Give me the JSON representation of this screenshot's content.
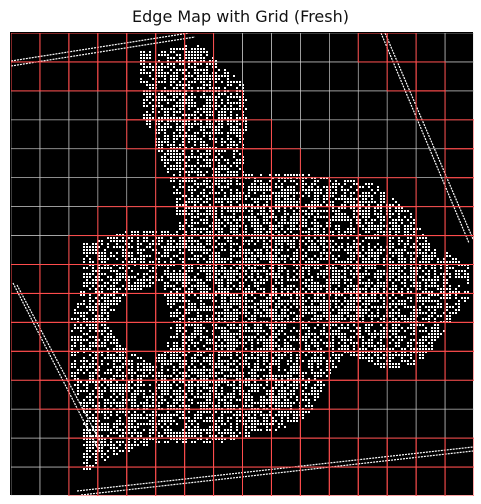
{
  "figure": {
    "title": "Edge Map with Grid (Fresh)"
  },
  "grid": {
    "cell_count": 16,
    "highlight_color": "#ff4d4d",
    "normal_color": "#c8c8c8",
    "highlighted_cells": [
      [
        0,
        0
      ],
      [
        0,
        1
      ],
      [
        0,
        2
      ],
      [
        0,
        3
      ],
      [
        0,
        4
      ],
      [
        0,
        5
      ],
      [
        0,
        6
      ],
      [
        0,
        12
      ],
      [
        0,
        13
      ],
      [
        1,
        0
      ],
      [
        1,
        1
      ],
      [
        1,
        2
      ],
      [
        1,
        3
      ],
      [
        1,
        4
      ],
      [
        1,
        5
      ],
      [
        1,
        6
      ],
      [
        1,
        13
      ],
      [
        1,
        14
      ],
      [
        2,
        4
      ],
      [
        2,
        5
      ],
      [
        2,
        6
      ],
      [
        2,
        7
      ],
      [
        2,
        14
      ],
      [
        3,
        4
      ],
      [
        3,
        5
      ],
      [
        3,
        6
      ],
      [
        3,
        7
      ],
      [
        3,
        8
      ],
      [
        3,
        15
      ],
      [
        4,
        5
      ],
      [
        4,
        6
      ],
      [
        4,
        7
      ],
      [
        4,
        8
      ],
      [
        4,
        9
      ],
      [
        4,
        15
      ],
      [
        5,
        5
      ],
      [
        5,
        6
      ],
      [
        5,
        7
      ],
      [
        5,
        8
      ],
      [
        5,
        9
      ],
      [
        5,
        10
      ],
      [
        5,
        11
      ],
      [
        5,
        12
      ],
      [
        5,
        13
      ],
      [
        5,
        15
      ],
      [
        6,
        3
      ],
      [
        6,
        4
      ],
      [
        6,
        5
      ],
      [
        6,
        6
      ],
      [
        6,
        7
      ],
      [
        6,
        8
      ],
      [
        6,
        9
      ],
      [
        6,
        10
      ],
      [
        6,
        11
      ],
      [
        6,
        12
      ],
      [
        6,
        13
      ],
      [
        6,
        14
      ],
      [
        6,
        15
      ],
      [
        7,
        2
      ],
      [
        7,
        3
      ],
      [
        7,
        4
      ],
      [
        7,
        5
      ],
      [
        7,
        6
      ],
      [
        7,
        7
      ],
      [
        7,
        8
      ],
      [
        7,
        9
      ],
      [
        7,
        10
      ],
      [
        7,
        11
      ],
      [
        7,
        12
      ],
      [
        7,
        13
      ],
      [
        7,
        14
      ],
      [
        7,
        15
      ],
      [
        8,
        0
      ],
      [
        8,
        1
      ],
      [
        8,
        2
      ],
      [
        8,
        3
      ],
      [
        8,
        4
      ],
      [
        8,
        5
      ],
      [
        8,
        6
      ],
      [
        8,
        7
      ],
      [
        8,
        8
      ],
      [
        8,
        9
      ],
      [
        8,
        10
      ],
      [
        8,
        11
      ],
      [
        8,
        12
      ],
      [
        8,
        13
      ],
      [
        8,
        14
      ],
      [
        8,
        15
      ],
      [
        9,
        0
      ],
      [
        9,
        1
      ],
      [
        9,
        2
      ],
      [
        9,
        3
      ],
      [
        9,
        4
      ],
      [
        9,
        5
      ],
      [
        9,
        6
      ],
      [
        9,
        7
      ],
      [
        9,
        8
      ],
      [
        9,
        9
      ],
      [
        9,
        10
      ],
      [
        9,
        11
      ],
      [
        9,
        12
      ],
      [
        9,
        13
      ],
      [
        9,
        14
      ],
      [
        9,
        15
      ],
      [
        10,
        0
      ],
      [
        10,
        1
      ],
      [
        10,
        2
      ],
      [
        10,
        3
      ],
      [
        10,
        4
      ],
      [
        10,
        5
      ],
      [
        10,
        6
      ],
      [
        10,
        7
      ],
      [
        10,
        8
      ],
      [
        10,
        9
      ],
      [
        10,
        10
      ],
      [
        10,
        11
      ],
      [
        10,
        12
      ],
      [
        10,
        13
      ],
      [
        10,
        14
      ],
      [
        10,
        15
      ],
      [
        11,
        0
      ],
      [
        11,
        1
      ],
      [
        11,
        2
      ],
      [
        11,
        3
      ],
      [
        11,
        4
      ],
      [
        11,
        5
      ],
      [
        11,
        6
      ],
      [
        11,
        7
      ],
      [
        11,
        8
      ],
      [
        11,
        9
      ],
      [
        11,
        10
      ],
      [
        11,
        11
      ],
      [
        11,
        12
      ],
      [
        11,
        13
      ],
      [
        11,
        14
      ],
      [
        11,
        15
      ],
      [
        12,
        1
      ],
      [
        12,
        2
      ],
      [
        12,
        3
      ],
      [
        12,
        4
      ],
      [
        12,
        5
      ],
      [
        12,
        6
      ],
      [
        12,
        7
      ],
      [
        12,
        8
      ],
      [
        12,
        9
      ],
      [
        12,
        10
      ],
      [
        12,
        11
      ],
      [
        13,
        2
      ],
      [
        13,
        3
      ],
      [
        13,
        4
      ],
      [
        13,
        5
      ],
      [
        13,
        6
      ],
      [
        13,
        7
      ],
      [
        13,
        8
      ],
      [
        13,
        9
      ],
      [
        13,
        10
      ],
      [
        14,
        2
      ],
      [
        14,
        3
      ],
      [
        14,
        4
      ],
      [
        14,
        5
      ],
      [
        14,
        6
      ],
      [
        14,
        7
      ],
      [
        14,
        8
      ],
      [
        14,
        9
      ],
      [
        14,
        10
      ],
      [
        14,
        11
      ],
      [
        14,
        12
      ],
      [
        14,
        13
      ],
      [
        14,
        14
      ],
      [
        14,
        15
      ],
      [
        15,
        2
      ],
      [
        15,
        3
      ],
      [
        15,
        4
      ],
      [
        15,
        5
      ],
      [
        15,
        6
      ],
      [
        15,
        7
      ],
      [
        15,
        8
      ],
      [
        15,
        9
      ],
      [
        15,
        10
      ],
      [
        15,
        11
      ],
      [
        15,
        12
      ],
      [
        15,
        13
      ],
      [
        15,
        14
      ],
      [
        15,
        15
      ]
    ]
  },
  "colors": {
    "background": "#000000",
    "edges": "#ffffff"
  }
}
